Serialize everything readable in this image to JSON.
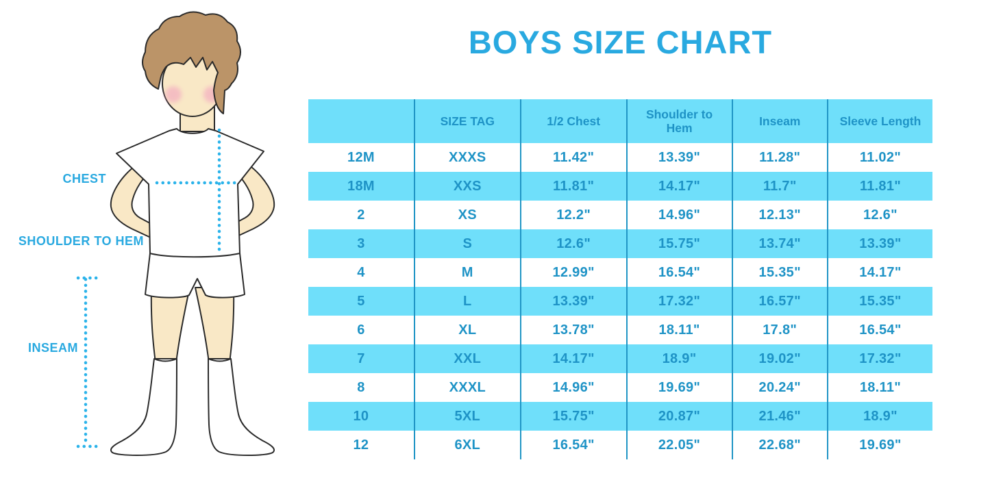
{
  "title": "BOYS SIZE CHART",
  "figure": {
    "labels": {
      "chest": "CHEST",
      "shoulder_to_hem": "SHOULDER TO HEM",
      "inseam": "INSEAM"
    }
  },
  "chart_data": {
    "type": "table",
    "title": "BOYS SIZE CHART",
    "columns": [
      "",
      "SIZE TAG",
      "1/2 Chest",
      "Shoulder to Hem",
      "Inseam",
      "Sleeve Length"
    ],
    "rows": [
      [
        "12M",
        "XXXS",
        "11.42\"",
        "13.39\"",
        "11.28\"",
        "11.02\""
      ],
      [
        "18M",
        "XXS",
        "11.81\"",
        "14.17\"",
        "11.7\"",
        "11.81\""
      ],
      [
        "2",
        "XS",
        "12.2\"",
        "14.96\"",
        "12.13\"",
        "12.6\""
      ],
      [
        "3",
        "S",
        "12.6\"",
        "15.75\"",
        "13.74\"",
        "13.39\""
      ],
      [
        "4",
        "M",
        "12.99\"",
        "16.54\"",
        "15.35\"",
        "14.17\""
      ],
      [
        "5",
        "L",
        "13.39\"",
        "17.32\"",
        "16.57\"",
        "15.35\""
      ],
      [
        "6",
        "XL",
        "13.78\"",
        "18.11\"",
        "17.8\"",
        "16.54\""
      ],
      [
        "7",
        "XXL",
        "14.17\"",
        "18.9\"",
        "19.02\"",
        "17.32\""
      ],
      [
        "8",
        "XXXL",
        "14.96\"",
        "19.69\"",
        "20.24\"",
        "18.11\""
      ],
      [
        "10",
        "5XL",
        "15.75\"",
        "20.87\"",
        "21.46\"",
        "18.9\""
      ],
      [
        "12",
        "6XL",
        "16.54\"",
        "22.05\"",
        "22.68\"",
        "19.69\""
      ]
    ],
    "units": "inches",
    "striped": true,
    "stripe_colors": [
      "#FFFFFF",
      "#6FDFFA"
    ]
  },
  "colors": {
    "accent_blue": "#29A9E0",
    "table_fill": "#6FDFFA",
    "table_text": "#1E93C6",
    "column_line": "#2095C5",
    "dotted_line": "#2BB3EA",
    "skin": "#F9E8C6",
    "hair": "#BB9468"
  }
}
